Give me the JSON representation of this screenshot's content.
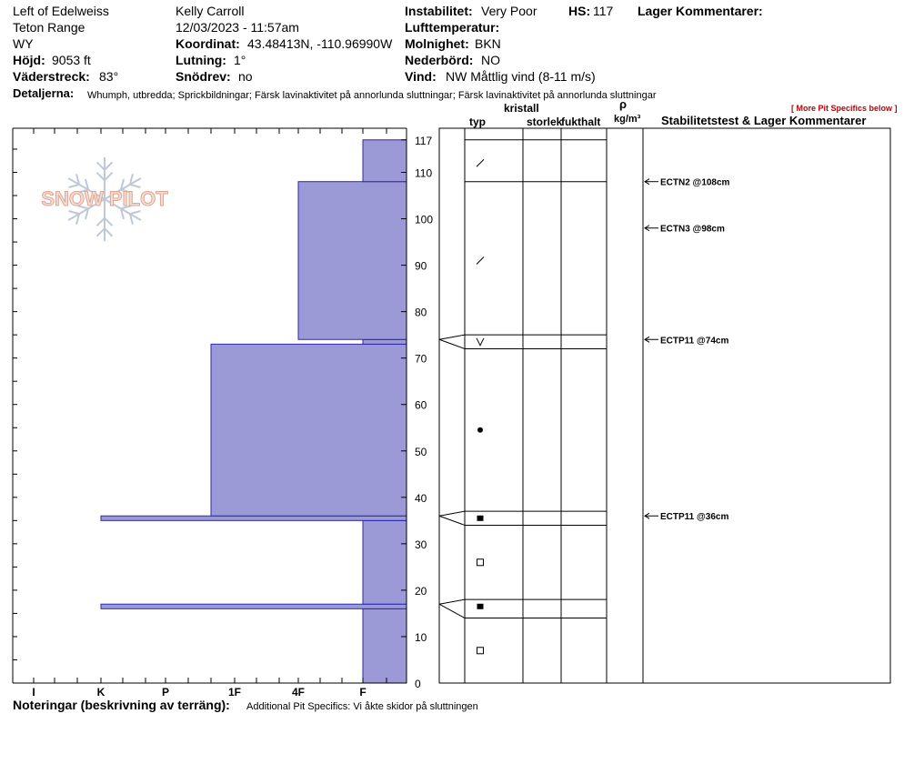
{
  "header": {
    "location": "Left of Edelweiss",
    "range": "Teton Range",
    "state": "WY",
    "elevation": {
      "label": "Höjd:",
      "value": "9053 ft"
    },
    "aspect": {
      "label": "Väderstreck:",
      "value": "83°"
    },
    "observer": "Kelly Carroll",
    "datetime": "12/03/2023 - 11:57am",
    "coords": {
      "label": "Koordinat:",
      "value": "43.48413N, -110.96990W"
    },
    "slope": {
      "label": "Lutning:",
      "value": "1°"
    },
    "drift": {
      "label": "Snödrev:",
      "value": "no"
    },
    "instability": {
      "label": "Instabilitet:",
      "value": "Very Poor"
    },
    "hs": {
      "label": "HS:",
      "value": "117"
    },
    "airtemp": {
      "label": "Lufttemperatur:",
      "value": ""
    },
    "sky": {
      "label": "Molnighet:",
      "value": "BKN"
    },
    "precip": {
      "label": "Nederbörd:",
      "value": "NO"
    },
    "wind": {
      "label": "Vind:",
      "value": "NW Måttlig vind (8-11 m/s)"
    },
    "layer_comments_label": "Lager Kommentarer:",
    "details": {
      "label": "Detaljerna:",
      "value": "Whumph, utbredda;  Sprickbildningar;  Färsk lavinaktivitet på annorlunda sluttningar;  Färsk lavinaktivitet på annorlunda sluttningar"
    },
    "more_link": "[ More Pit Specifics below ]"
  },
  "columns": {
    "crystal": "kristall",
    "type": "typ",
    "size": "storlek",
    "moisture": "fukthalt",
    "rho": "ρ",
    "density_unit": "kg/m³",
    "stability": "Stabilitetstest & Lager Kommentarer"
  },
  "logo_text": "SNOW PILOT",
  "footer": {
    "label": "Noteringar (beskrivning av terräng):",
    "value": "Additional Pit Specifics: Vi åkte skidor på sluttningen"
  },
  "chart_data": {
    "type": "bar",
    "orientation": "horizontal",
    "y_axis": {
      "label": "",
      "min": 0,
      "max": 117,
      "ticks": [
        0,
        10,
        20,
        30,
        40,
        50,
        60,
        70,
        80,
        90,
        100,
        110,
        117
      ]
    },
    "x_axis": {
      "categories": [
        "I",
        "K",
        "P",
        "1F",
        "4F",
        "F"
      ],
      "direction": "reversed"
    },
    "hardness_profile": [
      {
        "bottom": 0,
        "top": 16,
        "hardness": "F"
      },
      {
        "bottom": 16,
        "top": 17,
        "hardness": "K"
      },
      {
        "bottom": 17,
        "top": 35,
        "hardness": "F"
      },
      {
        "bottom": 35,
        "top": 36,
        "hardness": "K"
      },
      {
        "bottom": 36,
        "top": 73,
        "hardness": "1F+"
      },
      {
        "bottom": 73,
        "top": 74,
        "hardness": "F"
      },
      {
        "bottom": 74,
        "top": 108,
        "hardness": "4F"
      },
      {
        "bottom": 108,
        "top": 117,
        "hardness": "F"
      }
    ],
    "layer_boundaries": [
      117,
      108,
      75,
      72,
      37,
      34,
      18,
      14
    ],
    "crystal_layers": [
      {
        "y": 112,
        "symbol": "slash"
      },
      {
        "y": 91,
        "symbol": "slash"
      },
      {
        "y": 73.5,
        "symbol": "vee"
      },
      {
        "y": 54.5,
        "symbol": "dot"
      },
      {
        "y": 35.5,
        "symbol": "filled-square"
      },
      {
        "y": 26,
        "symbol": "open-square"
      },
      {
        "y": 16.5,
        "symbol": "filled-square"
      },
      {
        "y": 7,
        "symbol": "open-square"
      }
    ],
    "connectors": [
      {
        "chart_y": 74,
        "top": 75,
        "bottom": 72
      },
      {
        "chart_y": 36,
        "top": 37,
        "bottom": 34
      },
      {
        "chart_y": 17,
        "top": 18,
        "bottom": 14
      }
    ],
    "stability_tests": [
      {
        "depth": 108,
        "label": "ECTN2 @108cm"
      },
      {
        "depth": 98,
        "label": "ECTN3 @98cm"
      },
      {
        "depth": 74,
        "label": "ECTP11 @74cm"
      },
      {
        "depth": 36,
        "label": "ECTP11 @36cm"
      }
    ],
    "colors": {
      "fill": "#9b9ad7",
      "stroke": "#2b2aa8"
    }
  }
}
